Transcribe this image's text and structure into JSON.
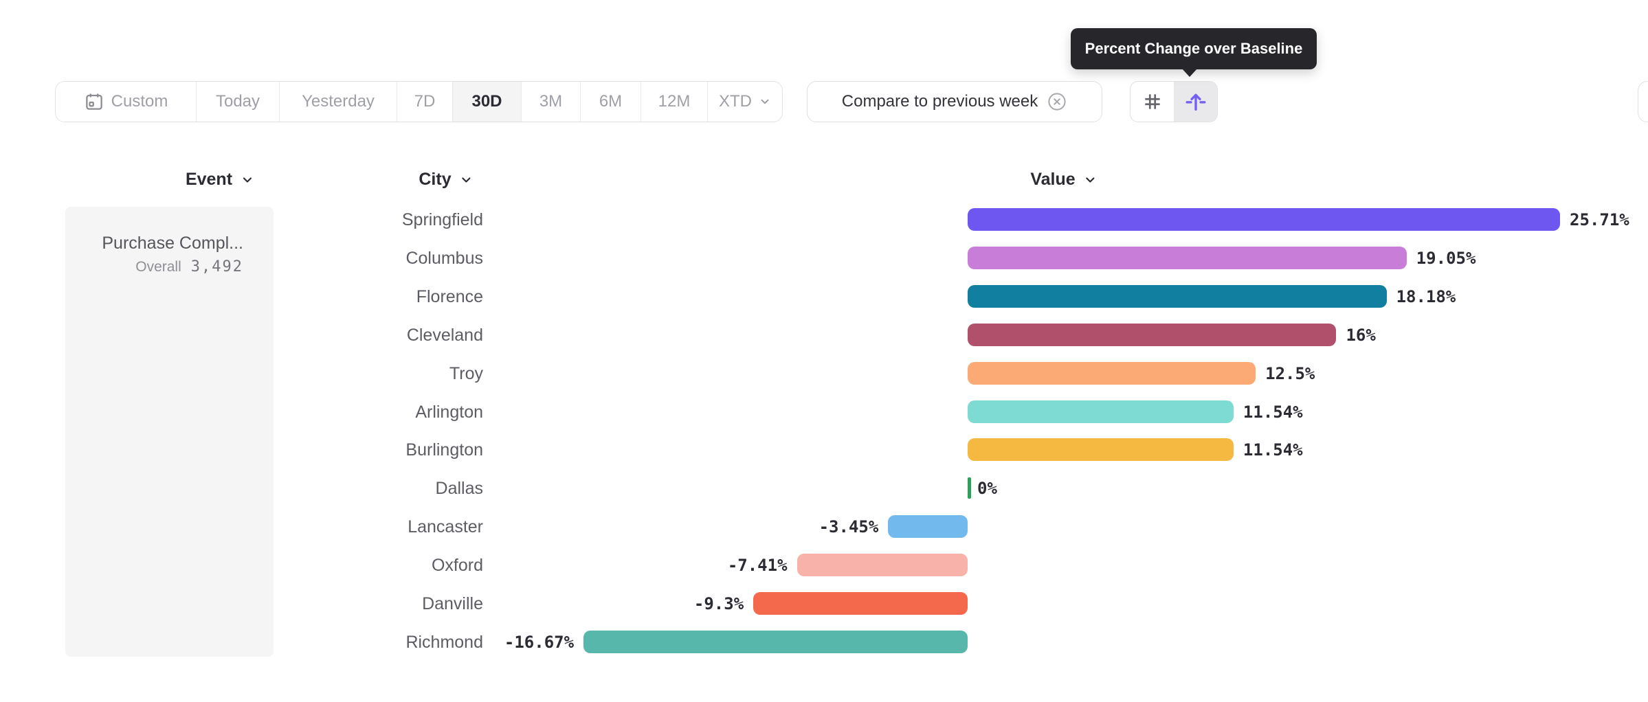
{
  "tooltip": {
    "text": "Percent Change over Baseline"
  },
  "toolbar": {
    "date_ranges": [
      "Custom",
      "Today",
      "Yesterday",
      "7D",
      "30D",
      "3M",
      "6M",
      "12M",
      "XTD"
    ],
    "selected_range": "30D",
    "compare_label": "Compare to previous week",
    "view_modes": [
      "numbers",
      "percent-change-over-baseline"
    ],
    "selected_view_mode": "percent-change-over-baseline"
  },
  "headers": {
    "event": "Event",
    "city": "City",
    "value": "Value"
  },
  "event_panel": {
    "event_name": "Purchase Compl...",
    "overall_label": "Overall",
    "overall_value": "3,492"
  },
  "chart_data": {
    "type": "bar",
    "orientation": "horizontal",
    "title": "Percent Change over Baseline",
    "unit": "percent",
    "grid": false,
    "legend": false,
    "value_range_shown": [
      -16.67,
      25.71
    ],
    "categories": [
      "Springfield",
      "Columbus",
      "Florence",
      "Cleveland",
      "Troy",
      "Arlington",
      "Burlington",
      "Dallas",
      "Lancaster",
      "Oxford",
      "Danville",
      "Richmond"
    ],
    "values": [
      25.71,
      19.05,
      18.18,
      16,
      12.5,
      11.54,
      11.54,
      0,
      -3.45,
      -7.41,
      -9.3,
      -16.67
    ],
    "labels": [
      "25.71%",
      "19.05%",
      "18.18%",
      "16%",
      "12.5%",
      "11.54%",
      "11.54%",
      "0%",
      "-3.45%",
      "-7.41%",
      "-9.3%",
      "-16.67%"
    ],
    "colors": [
      "#6e57f1",
      "#c87ed9",
      "#117f9f",
      "#b0506a",
      "#fbaa75",
      "#7ddbd3",
      "#f5b840",
      "#2d9f5b",
      "#72baed",
      "#f9b2aa",
      "#f4684b",
      "#57b7ab"
    ],
    "zero_tick_color": "#2d9f5b"
  },
  "theme": {
    "accent_purple": "#7460f1",
    "tooltip_bg": "#26262b",
    "selected_segment_bg": "#f4f4f5",
    "border": "#e2e2e5",
    "muted_text": "#9fa0a6",
    "dark_text": "#2b2b33"
  }
}
